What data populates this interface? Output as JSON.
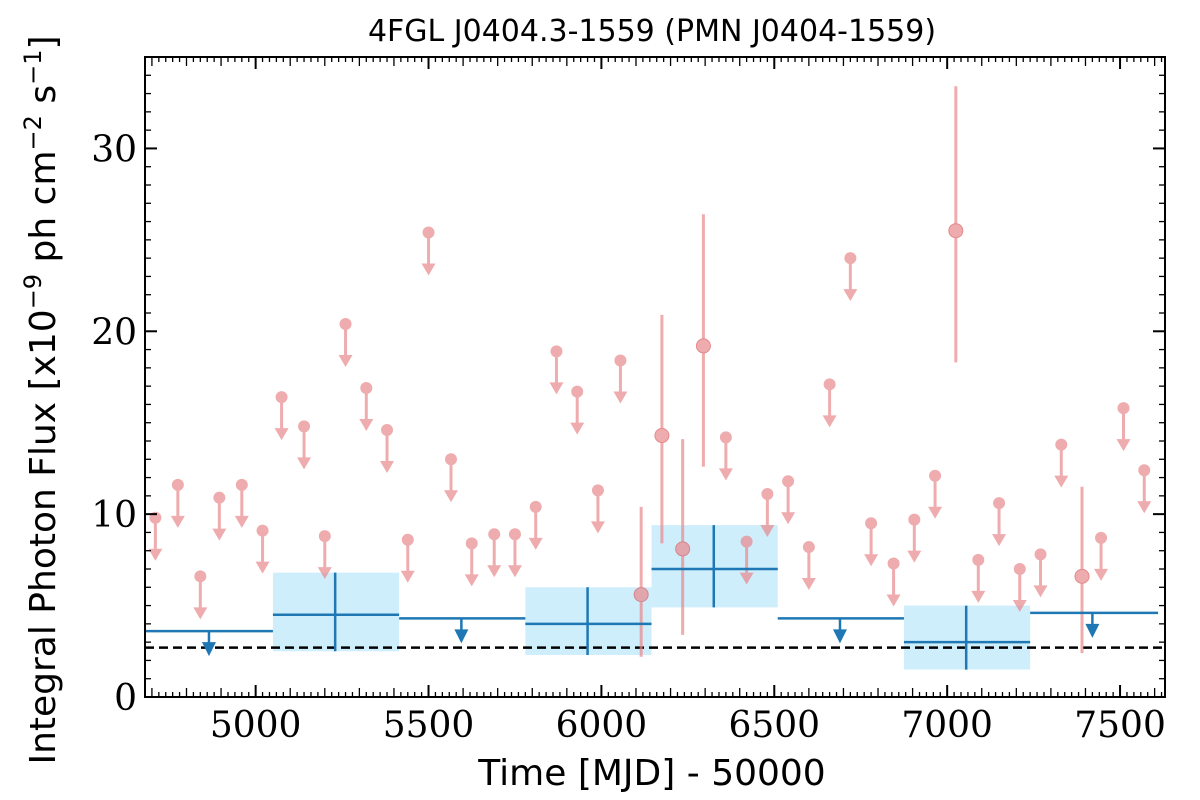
{
  "chart_data": {
    "type": "scatter",
    "title": "4FGL J0404.3-1559 (PMN J0404-1559)",
    "xlabel": "Time [MJD] - 50000",
    "ylabel": "Integral Photon Flux [x10^-9 ph cm^-2 s^-1]",
    "xlim": [
      4680,
      7630
    ],
    "ylim": [
      0,
      35
    ],
    "xticks": [
      5000,
      5500,
      6000,
      6500,
      7000,
      7500
    ],
    "yticks": [
      0,
      10,
      20,
      30
    ],
    "xtick_labels": [
      "5000",
      "5500",
      "6000",
      "6500",
      "7000",
      "7500"
    ],
    "ytick_labels": [
      "0",
      "10",
      "20",
      "30"
    ],
    "grid": false,
    "reference_line": {
      "y": 2.7,
      "style": "dashed",
      "color": "#000000"
    },
    "colors": {
      "short_bins": "#e9898c",
      "long_bins": "#1f77b4",
      "long_bins_band": "#cfeefc"
    },
    "series": [
      {
        "kind": "short_bins_upper_limits",
        "points": [
          {
            "x": 4710,
            "y": 9.8
          },
          {
            "x": 4775,
            "y": 11.6
          },
          {
            "x": 4840,
            "y": 6.6
          },
          {
            "x": 4895,
            "y": 10.9
          },
          {
            "x": 4960,
            "y": 11.6
          },
          {
            "x": 5020,
            "y": 9.1
          },
          {
            "x": 5075,
            "y": 16.4
          },
          {
            "x": 5140,
            "y": 14.8
          },
          {
            "x": 5200,
            "y": 8.8
          },
          {
            "x": 5260,
            "y": 20.4
          },
          {
            "x": 5320,
            "y": 16.9
          },
          {
            "x": 5380,
            "y": 14.6
          },
          {
            "x": 5440,
            "y": 8.6
          },
          {
            "x": 5500,
            "y": 25.4
          },
          {
            "x": 5565,
            "y": 13.0
          },
          {
            "x": 5625,
            "y": 8.4
          },
          {
            "x": 5690,
            "y": 8.9
          },
          {
            "x": 5750,
            "y": 8.9
          },
          {
            "x": 5810,
            "y": 10.4
          },
          {
            "x": 5870,
            "y": 18.9
          },
          {
            "x": 5930,
            "y": 16.7
          },
          {
            "x": 5990,
            "y": 11.3
          },
          {
            "x": 6055,
            "y": 18.4
          },
          {
            "x": 6360,
            "y": 14.2
          },
          {
            "x": 6420,
            "y": 8.5
          },
          {
            "x": 6480,
            "y": 11.1
          },
          {
            "x": 6540,
            "y": 11.8
          },
          {
            "x": 6600,
            "y": 8.2
          },
          {
            "x": 6660,
            "y": 17.1
          },
          {
            "x": 6720,
            "y": 24.0
          },
          {
            "x": 6780,
            "y": 9.5
          },
          {
            "x": 6845,
            "y": 7.3
          },
          {
            "x": 6905,
            "y": 9.7
          },
          {
            "x": 6965,
            "y": 12.1
          },
          {
            "x": 7090,
            "y": 7.5
          },
          {
            "x": 7150,
            "y": 10.6
          },
          {
            "x": 7210,
            "y": 7.0
          },
          {
            "x": 7270,
            "y": 7.8
          },
          {
            "x": 7330,
            "y": 13.8
          },
          {
            "x": 7445,
            "y": 8.7
          },
          {
            "x": 7510,
            "y": 15.8
          },
          {
            "x": 7570,
            "y": 12.4
          }
        ]
      },
      {
        "kind": "short_bins_detections",
        "points": [
          {
            "x": 6115,
            "y": 5.6,
            "ylow": 2.2,
            "yhigh": 10.4
          },
          {
            "x": 6175,
            "y": 14.3,
            "ylow": 8.4,
            "yhigh": 20.9
          },
          {
            "x": 6235,
            "y": 8.1,
            "ylow": 3.4,
            "yhigh": 14.1
          },
          {
            "x": 6295,
            "y": 19.2,
            "ylow": 12.6,
            "yhigh": 26.4
          },
          {
            "x": 7025,
            "y": 25.5,
            "ylow": 18.3,
            "yhigh": 33.4
          },
          {
            "x": 7390,
            "y": 6.6,
            "ylow": 2.4,
            "yhigh": 11.5
          }
        ]
      },
      {
        "kind": "long_bins_detections",
        "points": [
          {
            "x": 5230,
            "xmin": 5050,
            "xmax": 5415,
            "y": 4.5,
            "ylow": 2.5,
            "yhigh": 6.8
          },
          {
            "x": 5960,
            "xmin": 5780,
            "xmax": 6145,
            "y": 4.0,
            "ylow": 2.3,
            "yhigh": 6.0
          },
          {
            "x": 6325,
            "xmin": 6145,
            "xmax": 6510,
            "y": 7.0,
            "ylow": 4.9,
            "yhigh": 9.4
          },
          {
            "x": 7055,
            "xmin": 6875,
            "xmax": 7240,
            "y": 3.0,
            "ylow": 1.5,
            "yhigh": 5.0
          }
        ]
      },
      {
        "kind": "long_bins_upper_limits",
        "points": [
          {
            "x": 4865,
            "xmin": 4680,
            "xmax": 5050,
            "y": 3.6
          },
          {
            "x": 5595,
            "xmin": 5415,
            "xmax": 5780,
            "y": 4.3
          },
          {
            "x": 6690,
            "xmin": 6510,
            "xmax": 6875,
            "y": 4.3
          },
          {
            "x": 7420,
            "xmin": 7240,
            "xmax": 7610,
            "y": 4.6
          }
        ]
      }
    ]
  }
}
